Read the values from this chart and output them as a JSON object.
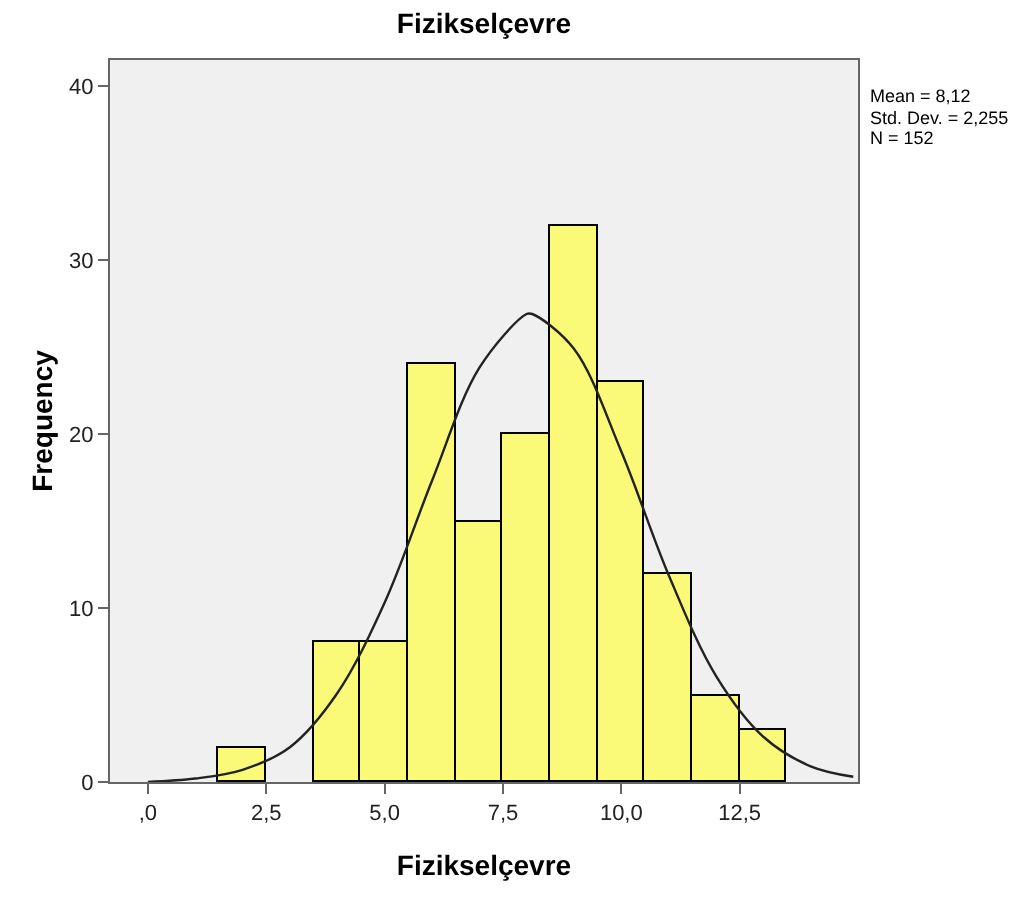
{
  "chart_data": {
    "type": "histogram",
    "title": "Fizikselçevre",
    "xlabel": "Fizikselçevre",
    "ylabel": "Frequency",
    "series": [
      {
        "color": "#fafa78",
        "bins": [
          1.5,
          2.5,
          3.5,
          4.5,
          5.5,
          6.5,
          7.5,
          8.5,
          9.5,
          10.5,
          11.5,
          12.5,
          13.5
        ],
        "values": [
          2,
          null,
          8,
          8,
          24,
          15,
          20,
          32,
          23,
          12,
          5,
          3
        ]
      },
      {
        "type": "line",
        "color": "#222222",
        "x": [
          0,
          1,
          2,
          3,
          4,
          5,
          6,
          7,
          8,
          8.12,
          9,
          10,
          11,
          12,
          13,
          14,
          14.9
        ],
        "values": [
          0,
          0.2,
          0.7,
          2,
          5.1,
          10.3,
          17.3,
          23.8,
          26.9,
          26.9,
          24.9,
          19,
          11.9,
          6.1,
          2.6,
          0.9,
          0.3
        ]
      }
    ],
    "xlim": [
      -0.8,
      15
    ],
    "xticks": [
      {
        "value": 0,
        "label": ",0"
      },
      {
        "value": 2.5,
        "label": "2,5"
      },
      {
        "value": 5,
        "label": "5,0"
      },
      {
        "value": 7.5,
        "label": "7,5"
      },
      {
        "value": 10,
        "label": "10,0"
      },
      {
        "value": 12.5,
        "label": "12,5"
      }
    ],
    "ylim": [
      0,
      41.5
    ],
    "yticks": [
      0,
      10,
      20,
      30,
      40
    ],
    "grid": false,
    "annotations": [
      "Mean = 8,12",
      "Std. Dev. = 2,255",
      "N = 152"
    ]
  }
}
